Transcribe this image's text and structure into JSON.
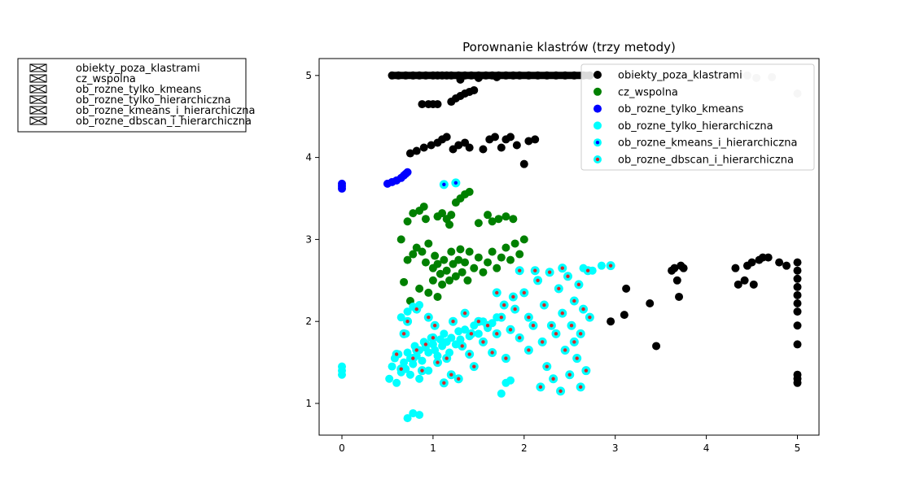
{
  "chart_data": {
    "type": "scatter",
    "title": "Porownanie klastrów (trzy metody)",
    "xlabel": "",
    "ylabel": "",
    "xlim": [
      -0.25,
      5.25
    ],
    "ylim": [
      0.6,
      5.2
    ],
    "xticks": [
      "0",
      "1",
      "2",
      "3",
      "4",
      "5"
    ],
    "yticks": [
      "1",
      "2",
      "3",
      "4",
      "5"
    ],
    "grid": false,
    "legend_placement": "top-right",
    "colors": {
      "obiekty_poza_klastrami": "#000000",
      "cz_wspolna": "#008000",
      "ob_rozne_tylko_kmeans": "#0000ff",
      "ob_rozne_tylko_hierarchiczna": "#00ffff",
      "ob_rozne_kmeans_i_hierarchiczna_ring": "#00ffff",
      "ob_rozne_kmeans_i_hierarchiczna_core": "#0000ff",
      "ob_rozne_dbscan_i_hierarchiczna_ring": "#00ffff",
      "ob_rozne_dbscan_i_hierarchiczna_core": "#d62728",
      "grey_points": "#c0c0c0"
    },
    "series": [
      {
        "name": "obiekty_poza_klastrami",
        "points": [
          [
            0.55,
            5.0
          ],
          [
            0.62,
            5.0
          ],
          [
            0.7,
            5.0
          ],
          [
            0.78,
            5.0
          ],
          [
            0.85,
            5.0
          ],
          [
            0.92,
            5.0
          ],
          [
            1.0,
            5.0
          ],
          [
            1.05,
            5.0
          ],
          [
            1.1,
            5.0
          ],
          [
            1.15,
            5.0
          ],
          [
            1.2,
            5.0
          ],
          [
            1.28,
            5.0
          ],
          [
            1.35,
            5.0
          ],
          [
            1.42,
            5.0
          ],
          [
            1.5,
            5.0
          ],
          [
            1.58,
            5.0
          ],
          [
            1.65,
            5.0
          ],
          [
            1.72,
            5.0
          ],
          [
            1.8,
            5.0
          ],
          [
            1.88,
            5.0
          ],
          [
            1.95,
            5.0
          ],
          [
            2.05,
            5.0
          ],
          [
            2.15,
            5.0
          ],
          [
            2.25,
            5.0
          ],
          [
            2.35,
            5.0
          ],
          [
            2.45,
            5.0
          ],
          [
            2.55,
            5.0
          ],
          [
            2.65,
            5.0
          ],
          [
            2.72,
            5.0
          ],
          [
            1.3,
            4.95
          ],
          [
            1.5,
            4.97
          ],
          [
            1.7,
            4.98
          ],
          [
            0.88,
            4.65
          ],
          [
            0.95,
            4.65
          ],
          [
            1.0,
            4.65
          ],
          [
            1.05,
            4.65
          ],
          [
            1.2,
            4.68
          ],
          [
            1.25,
            4.72
          ],
          [
            1.3,
            4.75
          ],
          [
            1.35,
            4.78
          ],
          [
            1.4,
            4.8
          ],
          [
            1.45,
            4.82
          ],
          [
            0.75,
            4.05
          ],
          [
            0.82,
            4.08
          ],
          [
            0.9,
            4.12
          ],
          [
            0.98,
            4.15
          ],
          [
            1.05,
            4.18
          ],
          [
            1.1,
            4.22
          ],
          [
            1.15,
            4.25
          ],
          [
            1.22,
            4.1
          ],
          [
            1.28,
            4.15
          ],
          [
            1.35,
            4.18
          ],
          [
            1.4,
            4.12
          ],
          [
            1.55,
            4.1
          ],
          [
            1.62,
            4.22
          ],
          [
            1.68,
            4.25
          ],
          [
            1.75,
            4.12
          ],
          [
            1.8,
            4.22
          ],
          [
            1.85,
            4.25
          ],
          [
            1.92,
            4.15
          ],
          [
            2.05,
            4.2
          ],
          [
            2.12,
            4.22
          ],
          [
            2.0,
            3.92
          ],
          [
            2.95,
            2.0
          ],
          [
            3.1,
            2.08
          ],
          [
            3.12,
            2.4
          ],
          [
            3.38,
            2.22
          ],
          [
            3.45,
            1.7
          ],
          [
            3.62,
            2.62
          ],
          [
            3.65,
            2.65
          ],
          [
            3.68,
            2.5
          ],
          [
            3.7,
            2.3
          ],
          [
            3.72,
            2.68
          ],
          [
            3.75,
            2.65
          ],
          [
            4.32,
            2.65
          ],
          [
            4.35,
            2.45
          ],
          [
            4.42,
            2.5
          ],
          [
            4.45,
            2.68
          ],
          [
            4.5,
            2.72
          ],
          [
            4.52,
            2.45
          ],
          [
            4.58,
            2.75
          ],
          [
            4.62,
            2.78
          ],
          [
            4.68,
            2.78
          ],
          [
            4.8,
            2.72
          ],
          [
            4.88,
            2.68
          ],
          [
            5.0,
            2.72
          ],
          [
            5.0,
            2.62
          ],
          [
            5.0,
            2.52
          ],
          [
            5.0,
            2.42
          ],
          [
            5.0,
            2.32
          ],
          [
            5.0,
            2.22
          ],
          [
            5.0,
            2.12
          ],
          [
            5.0,
            1.95
          ],
          [
            5.0,
            1.72
          ],
          [
            5.0,
            1.35
          ],
          [
            5.0,
            1.3
          ],
          [
            5.0,
            1.25
          ]
        ]
      },
      {
        "name": "cz_wspolna",
        "points": [
          [
            0.65,
            3.0
          ],
          [
            0.72,
            3.22
          ],
          [
            0.78,
            3.32
          ],
          [
            0.85,
            3.35
          ],
          [
            0.9,
            3.4
          ],
          [
            0.92,
            3.25
          ],
          [
            1.05,
            3.28
          ],
          [
            1.1,
            3.32
          ],
          [
            1.15,
            3.25
          ],
          [
            1.18,
            3.18
          ],
          [
            1.2,
            3.3
          ],
          [
            1.25,
            3.45
          ],
          [
            1.3,
            3.5
          ],
          [
            1.35,
            3.55
          ],
          [
            1.4,
            3.58
          ],
          [
            1.5,
            3.2
          ],
          [
            1.6,
            3.3
          ],
          [
            1.65,
            3.22
          ],
          [
            1.72,
            3.25
          ],
          [
            1.8,
            3.28
          ],
          [
            1.88,
            3.25
          ],
          [
            0.68,
            2.48
          ],
          [
            0.72,
            2.75
          ],
          [
            0.78,
            2.82
          ],
          [
            0.82,
            2.9
          ],
          [
            0.88,
            2.85
          ],
          [
            0.92,
            2.72
          ],
          [
            0.95,
            2.95
          ],
          [
            1.0,
            2.65
          ],
          [
            1.02,
            2.8
          ],
          [
            1.05,
            2.7
          ],
          [
            1.08,
            2.58
          ],
          [
            1.1,
            2.45
          ],
          [
            1.12,
            2.75
          ],
          [
            1.15,
            2.62
          ],
          [
            1.18,
            2.5
          ],
          [
            1.2,
            2.85
          ],
          [
            1.22,
            2.7
          ],
          [
            1.25,
            2.55
          ],
          [
            1.28,
            2.75
          ],
          [
            1.3,
            2.88
          ],
          [
            1.32,
            2.6
          ],
          [
            1.35,
            2.72
          ],
          [
            1.38,
            2.5
          ],
          [
            1.4,
            2.85
          ],
          [
            1.45,
            2.65
          ],
          [
            1.5,
            2.78
          ],
          [
            1.55,
            2.6
          ],
          [
            1.6,
            2.72
          ],
          [
            1.65,
            2.85
          ],
          [
            1.7,
            2.65
          ],
          [
            1.75,
            2.78
          ],
          [
            1.8,
            2.9
          ],
          [
            1.85,
            2.75
          ],
          [
            1.9,
            2.95
          ],
          [
            1.95,
            2.82
          ],
          [
            2.0,
            3.0
          ],
          [
            0.85,
            2.4
          ],
          [
            0.95,
            2.35
          ],
          [
            1.05,
            2.3
          ],
          [
            0.75,
            2.25
          ],
          [
            1.0,
            2.5
          ]
        ]
      },
      {
        "name": "ob_rozne_tylko_kmeans",
        "points": [
          [
            0.0,
            3.65
          ],
          [
            0.0,
            3.62
          ],
          [
            0.0,
            3.68
          ],
          [
            0.5,
            3.68
          ],
          [
            0.55,
            3.7
          ],
          [
            0.6,
            3.72
          ],
          [
            0.65,
            3.75
          ],
          [
            0.68,
            3.78
          ],
          [
            0.7,
            3.8
          ],
          [
            0.72,
            3.82
          ]
        ]
      },
      {
        "name": "ob_rozne_tylko_hierarchiczna",
        "points": [
          [
            0.0,
            1.45
          ],
          [
            0.0,
            1.4
          ],
          [
            0.0,
            1.35
          ],
          [
            0.52,
            1.3
          ],
          [
            0.55,
            1.45
          ],
          [
            0.58,
            1.55
          ],
          [
            0.6,
            1.25
          ],
          [
            0.62,
            1.6
          ],
          [
            0.65,
            1.38
          ],
          [
            0.68,
            1.5
          ],
          [
            0.7,
            1.42
          ],
          [
            0.72,
            1.62
          ],
          [
            0.75,
            1.55
          ],
          [
            0.78,
            1.48
          ],
          [
            0.8,
            1.7
          ],
          [
            0.82,
            1.58
          ],
          [
            0.85,
            1.65
          ],
          [
            0.88,
            1.52
          ],
          [
            0.9,
            1.75
          ],
          [
            0.92,
            1.68
          ],
          [
            0.95,
            1.62
          ],
          [
            0.98,
            1.8
          ],
          [
            1.0,
            1.72
          ],
          [
            1.02,
            1.65
          ],
          [
            1.05,
            1.58
          ],
          [
            1.08,
            1.78
          ],
          [
            1.1,
            1.7
          ],
          [
            1.12,
            1.85
          ],
          [
            1.15,
            1.75
          ],
          [
            1.18,
            1.62
          ],
          [
            1.2,
            1.8
          ],
          [
            1.25,
            1.72
          ],
          [
            1.28,
            1.88
          ],
          [
            1.3,
            1.78
          ],
          [
            1.35,
            1.9
          ],
          [
            1.4,
            1.82
          ],
          [
            1.45,
            1.95
          ],
          [
            1.5,
            1.85
          ],
          [
            1.55,
            2.0
          ],
          [
            1.6,
            1.92
          ],
          [
            1.65,
            1.98
          ],
          [
            1.7,
            2.05
          ],
          [
            0.65,
            2.05
          ],
          [
            0.72,
            2.12
          ],
          [
            0.78,
            2.18
          ],
          [
            0.85,
            2.2
          ],
          [
            0.7,
            1.85
          ],
          [
            0.75,
            1.35
          ],
          [
            0.85,
            1.3
          ],
          [
            0.95,
            1.4
          ],
          [
            0.72,
            0.82
          ],
          [
            0.78,
            0.88
          ],
          [
            0.85,
            0.86
          ],
          [
            1.8,
            1.25
          ],
          [
            1.85,
            1.28
          ],
          [
            1.75,
            1.12
          ],
          [
            2.65,
            2.65
          ],
          [
            2.75,
            2.62
          ],
          [
            2.85,
            2.68
          ]
        ]
      },
      {
        "name": "ob_rozne_kmeans_i_hierarchiczna",
        "points": [
          [
            1.12,
            3.67
          ],
          [
            1.25,
            3.69
          ]
        ]
      },
      {
        "name": "ob_rozne_dbscan_i_hierarchiczna",
        "points": [
          [
            0.6,
            1.6
          ],
          [
            0.65,
            1.42
          ],
          [
            0.68,
            1.85
          ],
          [
            0.72,
            2.0
          ],
          [
            0.78,
            1.55
          ],
          [
            0.82,
            2.15
          ],
          [
            0.88,
            1.4
          ],
          [
            0.95,
            2.05
          ],
          [
            1.0,
            1.8
          ],
          [
            1.05,
            1.5
          ],
          [
            1.12,
            1.25
          ],
          [
            1.2,
            1.35
          ],
          [
            1.28,
            1.3
          ],
          [
            1.35,
            2.1
          ],
          [
            1.4,
            1.6
          ],
          [
            1.45,
            1.45
          ],
          [
            1.5,
            2.0
          ],
          [
            1.55,
            1.75
          ],
          [
            1.6,
            1.95
          ],
          [
            1.65,
            1.62
          ],
          [
            1.7,
            1.85
          ],
          [
            1.75,
            2.05
          ],
          [
            1.8,
            1.55
          ],
          [
            1.85,
            1.9
          ],
          [
            1.9,
            2.15
          ],
          [
            1.95,
            1.8
          ],
          [
            2.0,
            2.35
          ],
          [
            2.05,
            1.65
          ],
          [
            2.1,
            1.95
          ],
          [
            2.15,
            2.5
          ],
          [
            2.18,
            1.2
          ],
          [
            2.2,
            1.75
          ],
          [
            2.22,
            2.2
          ],
          [
            2.25,
            1.45
          ],
          [
            2.28,
            2.6
          ],
          [
            2.3,
            1.95
          ],
          [
            2.32,
            1.3
          ],
          [
            2.35,
            1.85
          ],
          [
            2.38,
            2.4
          ],
          [
            2.4,
            1.15
          ],
          [
            2.42,
            2.1
          ],
          [
            2.45,
            1.65
          ],
          [
            2.48,
            2.55
          ],
          [
            2.5,
            1.35
          ],
          [
            2.52,
            1.95
          ],
          [
            2.55,
            2.25
          ],
          [
            2.58,
            1.55
          ],
          [
            2.6,
            2.45
          ],
          [
            2.62,
            1.85
          ],
          [
            2.65,
            2.15
          ],
          [
            2.68,
            1.4
          ],
          [
            2.7,
            2.62
          ],
          [
            2.72,
            2.05
          ],
          [
            2.42,
            2.65
          ],
          [
            2.12,
            2.62
          ],
          [
            1.95,
            2.62
          ],
          [
            1.88,
            2.3
          ],
          [
            1.78,
            2.2
          ],
          [
            1.7,
            2.35
          ],
          [
            2.62,
            1.2
          ],
          [
            2.55,
            1.75
          ],
          [
            2.95,
            2.68
          ],
          [
            0.82,
            1.65
          ],
          [
            0.92,
            1.72
          ],
          [
            1.02,
            1.95
          ],
          [
            1.15,
            1.55
          ],
          [
            1.22,
            2.0
          ],
          [
            1.32,
            1.7
          ],
          [
            1.42,
            1.85
          ],
          [
            2.05,
            2.05
          ]
        ]
      }
    ],
    "extra_points": [
      [
        4.45,
        5.0
      ],
      [
        4.55,
        4.97
      ],
      [
        4.72,
        4.98
      ],
      [
        5.0,
        4.78
      ]
    ]
  },
  "legend_left": {
    "items": [
      "obiekty_poza_klastrami",
      "cz_wspolna",
      "ob_rozne_tylko_kmeans",
      "ob_rozne_tylko_hierarchiczna",
      "ob_rozne_kmeans_i_hierarchiczna",
      "ob_rozne_dbscan_i_hierarchiczna"
    ]
  },
  "legend_main": {
    "items": [
      "obiekty_poza_klastrami",
      "cz_wspolna",
      "ob_rozne_tylko_kmeans",
      "ob_rozne_tylko_hierarchiczna",
      "ob_rozne_kmeans_i_hierarchiczna",
      "ob_rozne_dbscan_i_hierarchiczna"
    ]
  }
}
